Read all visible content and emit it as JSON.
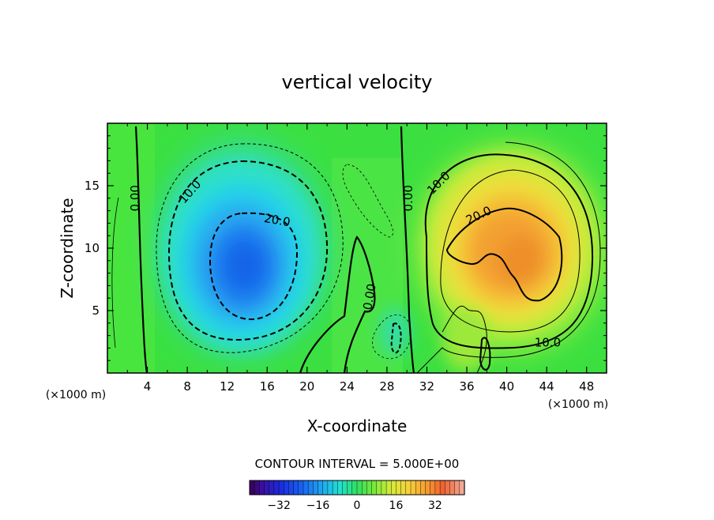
{
  "chart_data": {
    "type": "heatmap",
    "title": "vertical velocity",
    "xlabel": "X-coordinate",
    "ylabel": "Z-coordinate",
    "x_unit_left": "(×1000 m)",
    "x_unit_right": "(×1000 m)",
    "xlim": [
      0,
      50
    ],
    "ylim": [
      0,
      20
    ],
    "x_ticks": [
      4,
      8,
      12,
      16,
      20,
      24,
      28,
      32,
      36,
      40,
      44,
      48
    ],
    "y_ticks": [
      5,
      10,
      15
    ],
    "contour_interval_text": "CONTOUR INTERVAL = 5.000E+00",
    "colorbar": {
      "range": [
        -44,
        44
      ],
      "ticks": [
        -32,
        -16,
        0,
        16,
        32
      ],
      "tick_labels": [
        "−32",
        "−16",
        "0",
        "16",
        "32"
      ]
    },
    "contour_labels": [
      {
        "text": "0.00",
        "x": 2.8,
        "y": 14.0,
        "rotate": -90
      },
      {
        "text": "10.0",
        "x": 8.3,
        "y": 14.5,
        "rotate": -48
      },
      {
        "text": "20.0",
        "x": 17.0,
        "y": 12.2,
        "rotate": 10
      },
      {
        "text": "0.00",
        "x": 26.3,
        "y": 6.1,
        "rotate": -80
      },
      {
        "text": "0.00",
        "x": 30.2,
        "y": 14.0,
        "rotate": -90
      },
      {
        "text": "10.0",
        "x": 33.2,
        "y": 15.2,
        "rotate": -45
      },
      {
        "text": "20.0",
        "x": 37.2,
        "y": 12.6,
        "rotate": -25
      },
      {
        "text": "10.0",
        "x": 44.1,
        "y": 2.4,
        "rotate": 0
      }
    ],
    "features": [
      {
        "kind": "downdraft",
        "center": [
          13.5,
          8.8
        ],
        "peak": -33,
        "radius": [
          7.5,
          7.2
        ]
      },
      {
        "kind": "updraft",
        "center": [
          40.5,
          10.0
        ],
        "peak": 28,
        "radius": [
          7.0,
          7.0
        ]
      }
    ],
    "colors": {
      "background_field": "#3be040",
      "line": "#000000"
    }
  }
}
